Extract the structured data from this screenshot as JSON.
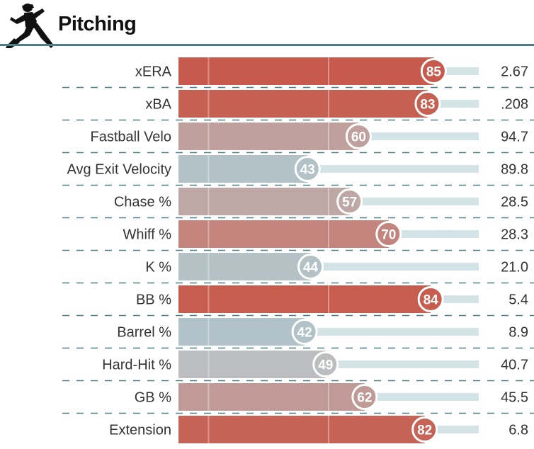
{
  "header": {
    "title": "Pitching"
  },
  "chart_data": {
    "type": "bar",
    "categories": [
      "xERA",
      "xBA",
      "Fastball Velo",
      "Avg Exit Velocity",
      "Chase %",
      "Whiff %",
      "K %",
      "BB %",
      "Barrel %",
      "Hard-Hit %",
      "GB %",
      "Extension"
    ],
    "series": [
      {
        "values": [
          85,
          83,
          60,
          43,
          57,
          70,
          44,
          84,
          42,
          49,
          62,
          82
        ]
      }
    ],
    "stat_values": [
      "2.67",
      ".208",
      "94.7",
      "89.8",
      "28.5",
      "28.3",
      "21.0",
      "5.4",
      "8.9",
      "40.7",
      "45.5",
      "6.8"
    ],
    "xlim": [
      0,
      100
    ],
    "reference_lines": [
      10,
      50,
      90
    ],
    "colors": {
      "high": "#c75a4c",
      "mid": "#bcbcbc",
      "low": "#aec5cb",
      "track": "#d4e3e5",
      "divider": "#4e7f86"
    }
  }
}
